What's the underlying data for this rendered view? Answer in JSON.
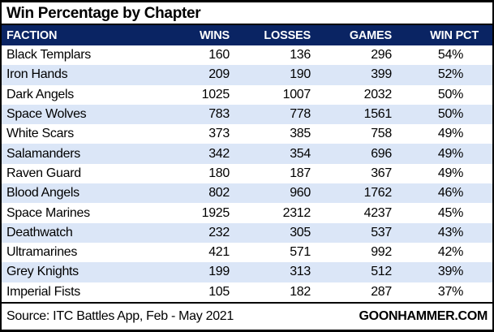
{
  "title": "Win Percentage by Chapter",
  "chart_data": {
    "type": "table",
    "title": "Win Percentage by Chapter",
    "columns": [
      "FACTION",
      "WINS",
      "LOSSES",
      "GAMES",
      "WIN PCT"
    ],
    "rows": [
      [
        "Black Templars",
        "160",
        "136",
        "296",
        "54%"
      ],
      [
        "Iron Hands",
        "209",
        "190",
        "399",
        "52%"
      ],
      [
        "Dark Angels",
        "1025",
        "1007",
        "2032",
        "50%"
      ],
      [
        "Space Wolves",
        "783",
        "778",
        "1561",
        "50%"
      ],
      [
        "White Scars",
        "373",
        "385",
        "758",
        "49%"
      ],
      [
        "Salamanders",
        "342",
        "354",
        "696",
        "49%"
      ],
      [
        "Raven Guard",
        "180",
        "187",
        "367",
        "49%"
      ],
      [
        "Blood Angels",
        "802",
        "960",
        "1762",
        "46%"
      ],
      [
        "Space Marines",
        "1925",
        "2312",
        "4237",
        "45%"
      ],
      [
        "Deathwatch",
        "232",
        "305",
        "537",
        "43%"
      ],
      [
        "Ultramarines",
        "421",
        "571",
        "992",
        "42%"
      ],
      [
        "Grey Knights",
        "199",
        "313",
        "512",
        "39%"
      ],
      [
        "Imperial Fists",
        "105",
        "182",
        "287",
        "37%"
      ]
    ]
  },
  "footer": {
    "source": "Source: ITC Battles App, Feb - May 2021",
    "brand": "GOONHAMMER.COM"
  },
  "colors": {
    "header_bg": "#0a2463",
    "header_text": "#ffffff",
    "row_band": "#dbe6f7",
    "border": "#000000"
  }
}
